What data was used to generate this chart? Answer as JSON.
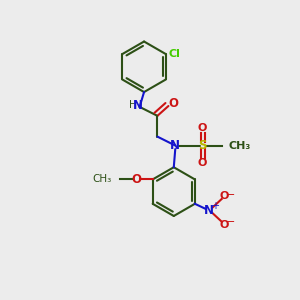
{
  "bg_color": "#ececec",
  "bond_color": "#2d5016",
  "N_color": "#1414cc",
  "O_color": "#cc1414",
  "S_color": "#b8b800",
  "Cl_color": "#44cc00",
  "lw": 1.5,
  "figsize": [
    3.0,
    3.0
  ],
  "dpi": 100,
  "xlim": [
    0,
    10
  ],
  "ylim": [
    0,
    10
  ]
}
